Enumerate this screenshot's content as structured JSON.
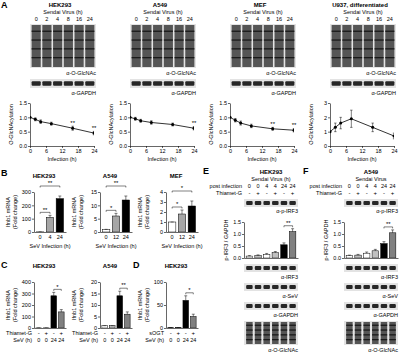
{
  "panels": [
    "A",
    "B",
    "C",
    "D",
    "E",
    "F"
  ],
  "blots": [
    {
      "title": "HEK293",
      "header": "Sendai Virus (h)",
      "lanes": [
        "0",
        "2",
        "4",
        "8",
        "16",
        "24"
      ],
      "rows": [
        "α-O-GlcNAc",
        "α-GAPDH"
      ]
    },
    {
      "title": "A549",
      "header": "Sendai Virus (h)",
      "lanes": [
        "0",
        "2",
        "4",
        "8",
        "16",
        "24"
      ],
      "rows": [
        "α-O-GlcNAc",
        "α-GAPDH"
      ]
    },
    {
      "title": "MEF",
      "header": "Sendai Virus (h)",
      "lanes": [
        "0",
        "2",
        "4",
        "8",
        "16",
        "24"
      ],
      "rows": [
        "α-O-GlcNAc",
        "α-GAPDH"
      ]
    },
    {
      "title": "U937, differentiated",
      "header": "Sendai Virus (h)",
      "lanes": [
        "0",
        "2",
        "4",
        "8",
        "16",
        "24"
      ],
      "rows": [
        "α-O-GlcNAc",
        "α-GAPDH"
      ]
    },
    {
      "title": "HEK293",
      "header": "Sendai Virus (h)",
      "lane_label": "post infection",
      "lanes": [
        "0",
        "0",
        "4",
        "4",
        "24",
        "24"
      ],
      "treatment": {
        "label": "Thiamet-G",
        "signs": [
          "-",
          "+",
          "-",
          "+",
          "-",
          "+"
        ]
      },
      "rows": [
        "α-p-IRF3",
        "α-IRF3",
        "α-SeV",
        "α-GAPDH",
        "α-O-GlcNAc"
      ]
    },
    {
      "title": "A549",
      "header": "Sendai Virus",
      "lane_label": "post infection",
      "lanes": [
        "0",
        "0",
        "4",
        "4",
        "24",
        "24"
      ],
      "treatment": {
        "label": "Thiamet-G",
        "signs": [
          "-",
          "+",
          "-",
          "+",
          "-",
          "+"
        ]
      },
      "rows": [
        "α-p-IRF3",
        "α-IRF3",
        "α-SeV",
        "α-GAPDH",
        "α-O-GlcNAc"
      ]
    }
  ],
  "chart_data": [
    {
      "type": "line",
      "x": [
        0,
        2,
        4,
        8,
        16,
        24
      ],
      "values": [
        1.0,
        0.93,
        0.85,
        0.78,
        0.62,
        0.45
      ],
      "errors": [
        0,
        0.05,
        0.06,
        0.05,
        0.07,
        0.06
      ],
      "color": "#000000",
      "marker": "circle",
      "xlim": [
        0,
        24
      ],
      "xticks": [
        0,
        6,
        12,
        18,
        24
      ],
      "ylim": [
        0,
        1.5
      ],
      "yticks": [
        {
          "value": 0,
          "label": "0.0"
        },
        {
          "value": 0.5,
          "label": "0.5"
        },
        {
          "value": 1,
          "label": "1.0"
        },
        {
          "value": 1.5,
          "label": "1.5"
        }
      ],
      "x_label": "Infection (h)",
      "y_label": "O-GlcNAcylation",
      "annotations": [
        {
          "text": "**",
          "x": 16
        },
        {
          "text": "**",
          "x": 24
        }
      ]
    },
    {
      "type": "line",
      "x": [
        0,
        2,
        4,
        8,
        16,
        24
      ],
      "values": [
        1.0,
        0.95,
        0.88,
        0.82,
        0.75,
        0.62
      ],
      "errors": [
        0,
        0.05,
        0.05,
        0.06,
        0.05,
        0.06
      ],
      "color": "#000000",
      "marker": "circle",
      "xlim": [
        0,
        24
      ],
      "xticks": [
        0,
        6,
        12,
        18,
        24
      ],
      "ylim": [
        0,
        1.5
      ],
      "yticks": [
        {
          "value": 0,
          "label": "0.0"
        },
        {
          "value": 0.5,
          "label": "0.5"
        },
        {
          "value": 1,
          "label": "1.0"
        },
        {
          "value": 1.5,
          "label": "1.5"
        }
      ],
      "x_label": "Infection (h)",
      "y_label": "O-GlcNAcylation",
      "annotations": [
        {
          "text": "**",
          "x": 24
        }
      ]
    },
    {
      "type": "line",
      "x": [
        0,
        2,
        4,
        8,
        16,
        24
      ],
      "values": [
        1.0,
        0.9,
        0.8,
        0.7,
        0.6,
        0.55
      ],
      "errors": [
        0,
        0.06,
        0.07,
        0.06,
        0.05,
        0.06
      ],
      "color": "#000000",
      "marker": "circle",
      "xlim": [
        0,
        24
      ],
      "xticks": [
        0,
        6,
        12,
        18,
        24
      ],
      "ylim": [
        0,
        1.5
      ],
      "yticks": [
        {
          "value": 0,
          "label": "0.0"
        },
        {
          "value": 0.5,
          "label": "0.5"
        },
        {
          "value": 1,
          "label": "1.0"
        },
        {
          "value": 1.5,
          "label": "1.5"
        }
      ],
      "x_label": "Infection (h)",
      "y_label": "O-GlcNAcylation",
      "annotations": [
        {
          "text": "**",
          "x": 16
        },
        {
          "text": "**",
          "x": 24
        }
      ]
    },
    {
      "type": "line",
      "x": [
        0,
        2,
        4,
        8,
        16,
        24
      ],
      "values": [
        1.0,
        1.3,
        1.6,
        1.9,
        1.3,
        0.7
      ],
      "errors": [
        0,
        0.3,
        0.4,
        0.6,
        0.3,
        0.2
      ],
      "color": "#000000",
      "marker": "circle",
      "xlim": [
        0,
        24
      ],
      "xticks": [
        0,
        6,
        12,
        18,
        24
      ],
      "ylim": [
        0,
        3
      ],
      "yticks": [
        0,
        1,
        2,
        3
      ],
      "x_label": "Infection (h)",
      "y_label": "O-GlcNAcylation"
    },
    {
      "type": "bar",
      "title": "HEK293",
      "categories": [
        "0",
        "4",
        "24"
      ],
      "values": [
        1,
        110,
        250
      ],
      "errors": [
        0,
        15,
        20
      ],
      "colors": [
        "#ffffff",
        "#a6a6a6",
        "#000000"
      ],
      "ylim": [
        0,
        300
      ],
      "yticks": [
        0,
        100,
        200,
        300
      ],
      "x_label": "SeV Infection (h)",
      "y_label": [
        "Ifnb1 mRNA",
        "(Fold change)"
      ],
      "annotations": [
        {
          "text": "**",
          "from": 0,
          "to": 1
        },
        {
          "text": "**",
          "from": 0,
          "to": 2
        }
      ]
    },
    {
      "type": "bar",
      "title": "A549",
      "categories": [
        "0",
        "12",
        "24"
      ],
      "values": [
        1,
        6,
        12
      ],
      "errors": [
        0,
        1,
        1.5
      ],
      "colors": [
        "#ffffff",
        "#a6a6a6",
        "#000000"
      ],
      "ylim": [
        0,
        15
      ],
      "yticks": [
        0,
        5,
        10,
        15
      ],
      "x_label": "SeV Infection (h)",
      "y_label": [
        "Ifnb1 mRNA",
        "(Fold change)"
      ],
      "annotations": [
        {
          "text": "*",
          "from": 0,
          "to": 1
        },
        {
          "text": "**",
          "from": 0,
          "to": 2
        }
      ]
    },
    {
      "type": "bar",
      "title": "MEF",
      "categories": [
        "0",
        "12",
        "24"
      ],
      "values": [
        1,
        1.8,
        2.6
      ],
      "errors": [
        0,
        0.4,
        0.5
      ],
      "colors": [
        "#ffffff",
        "#a6a6a6",
        "#000000"
      ],
      "ylim": [
        0,
        4
      ],
      "yticks": [
        0,
        1,
        2,
        3,
        4
      ],
      "x_label": "SeV Infection (h)",
      "y_label": [
        "Ifnb1 mRNA",
        "(Fold change)"
      ],
      "annotations": [
        {
          "text": "*",
          "from": 0,
          "to": 1
        },
        {
          "text": "*",
          "from": 0,
          "to": 2
        }
      ]
    },
    {
      "type": "bar",
      "title": "HEK293",
      "categories": [
        "0",
        "0",
        "24",
        "24"
      ],
      "treatment": {
        "label": "Thiamet-G",
        "signs": [
          "-",
          "+",
          "-",
          "+"
        ]
      },
      "values": [
        1,
        1,
        280,
        140
      ],
      "errors": [
        0,
        0,
        30,
        20
      ],
      "colors": [
        "#ffffff",
        "#bfbfbf",
        "#000000",
        "#808080"
      ],
      "ylim": [
        0,
        400
      ],
      "yticks": [
        0,
        100,
        200,
        300,
        400
      ],
      "x_label": "SeV (h)",
      "y_label": [
        "Ifnb1 mRNA",
        "(Fold change)"
      ],
      "annotations": [
        {
          "text": "*",
          "from": 2,
          "to": 3
        }
      ]
    },
    {
      "type": "bar",
      "title": "A549",
      "categories": [
        "0",
        "0",
        "24",
        "24"
      ],
      "treatment": {
        "label": "Thiamet-G",
        "signs": [
          "-",
          "+",
          "-",
          "+"
        ]
      },
      "values": [
        1,
        1,
        14,
        6
      ],
      "errors": [
        0,
        0,
        2,
        1
      ],
      "colors": [
        "#ffffff",
        "#bfbfbf",
        "#000000",
        "#808080"
      ],
      "ylim": [
        0,
        20
      ],
      "yticks": [
        0,
        5,
        10,
        15,
        20
      ],
      "x_label": "SeV (h)",
      "y_label": [
        "Ifnb1 mRNA",
        "(Fold change)"
      ],
      "annotations": [
        {
          "text": "**",
          "from": 2,
          "to": 3
        }
      ]
    },
    {
      "type": "bar",
      "title": "HEK293",
      "categories": [
        "0",
        "0",
        "24",
        "24"
      ],
      "treatment": {
        "label": "sOGT",
        "signs": [
          "-",
          "+",
          "-",
          "+"
        ]
      },
      "values": [
        1,
        1,
        60,
        25
      ],
      "errors": [
        0,
        0,
        10,
        5
      ],
      "colors": [
        "#ffffff",
        "#bfbfbf",
        "#000000",
        "#808080"
      ],
      "ylim": [
        0,
        100
      ],
      "yticks": [
        0,
        50,
        100
      ],
      "x_label": "SeV (h)",
      "y_label": [
        "Ifnb1 mRNA",
        "(Fold change)"
      ],
      "annotations": [
        {
          "text": "*",
          "from": 2,
          "to": 3
        }
      ]
    },
    {
      "type": "bar",
      "categories": [
        null,
        null,
        null,
        null,
        null,
        null
      ],
      "values": [
        0.08,
        0.1,
        0.15,
        0.22,
        0.55,
        1.1
      ],
      "errors": [
        0.02,
        0.03,
        0.04,
        0.05,
        0.08,
        0.12
      ],
      "colors": [
        "#ffffff",
        "#bfbfbf",
        "#ffffff",
        "#bfbfbf",
        "#000000",
        "#808080"
      ],
      "ylim": [
        0,
        1.5
      ],
      "yticks": [
        {
          "value": 0,
          "label": "0.0"
        },
        {
          "value": 0.5,
          "label": "0.5"
        },
        {
          "value": 1,
          "label": "1.0"
        },
        {
          "value": 1.5,
          "label": "1.5"
        }
      ],
      "y_label": "p-IRF3 / GAPDH",
      "annotations": [
        {
          "text": "**",
          "from": 4,
          "to": 5
        }
      ]
    },
    {
      "type": "bar",
      "categories": [
        null,
        null,
        null,
        null,
        null,
        null
      ],
      "values": [
        0.1,
        0.12,
        0.2,
        0.3,
        0.6,
        1.05
      ],
      "errors": [
        0.02,
        0.03,
        0.05,
        0.06,
        0.08,
        0.12
      ],
      "colors": [
        "#ffffff",
        "#bfbfbf",
        "#ffffff",
        "#bfbfbf",
        "#000000",
        "#808080"
      ],
      "ylim": [
        0,
        1.5
      ],
      "yticks": [
        {
          "value": 0,
          "label": "0.0"
        },
        {
          "value": 0.5,
          "label": "0.5"
        },
        {
          "value": 1,
          "label": "1.0"
        },
        {
          "value": 1.5,
          "label": "1.5"
        }
      ],
      "y_label": "p-IRF3 / GAPDH",
      "annotations": [
        {
          "text": "**",
          "from": 4,
          "to": 5
        }
      ]
    }
  ]
}
